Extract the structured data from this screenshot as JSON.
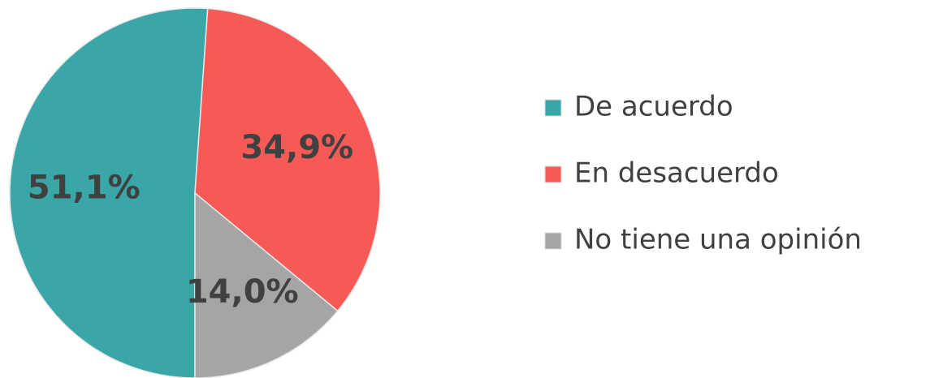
{
  "chart_data": {
    "type": "pie",
    "categories": [
      "De acuerdo",
      "En desacuerdo",
      "No tiene una opinión"
    ],
    "values": [
      51.1,
      34.9,
      14.0
    ],
    "value_labels": [
      "51,1%",
      "34,9%",
      "14,0%"
    ],
    "colors": [
      "#3aa6a8",
      "#f55a57",
      "#a5a5a5"
    ],
    "legend": "right"
  }
}
